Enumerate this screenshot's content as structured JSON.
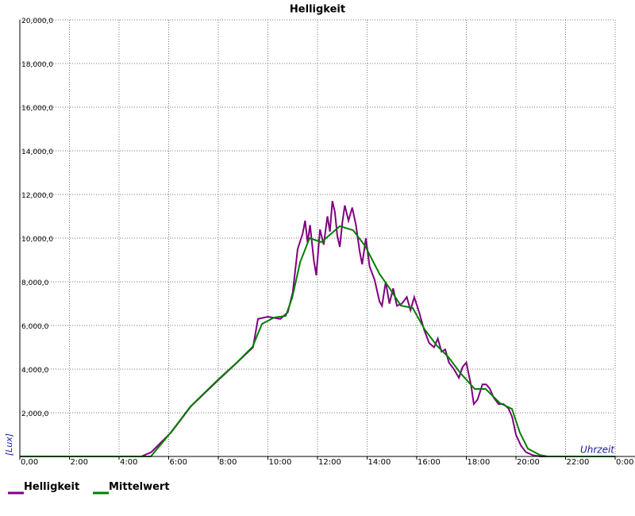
{
  "chart_data": {
    "type": "line",
    "title": "Helligkeit",
    "x_label": "Uhrzeit",
    "y_label": "[Lux]",
    "xlim": [
      0,
      24
    ],
    "ylim": [
      0,
      20000
    ],
    "xticks": [
      {
        "value": 0,
        "label": "0,00"
      },
      {
        "value": 2,
        "label": "2:00"
      },
      {
        "value": 4,
        "label": "4:00"
      },
      {
        "value": 6,
        "label": "6:00"
      },
      {
        "value": 8,
        "label": "8:00"
      },
      {
        "value": 10,
        "label": "10:00"
      },
      {
        "value": 12,
        "label": "12:00"
      },
      {
        "value": 14,
        "label": "14:00"
      },
      {
        "value": 16,
        "label": "16:00"
      },
      {
        "value": 18,
        "label": "18:00"
      },
      {
        "value": 20,
        "label": "20:00"
      },
      {
        "value": 22,
        "label": "22:00"
      },
      {
        "value": 24,
        "label": "0:00"
      }
    ],
    "yticks": [
      {
        "value": 2000,
        "label": "2,000,0"
      },
      {
        "value": 4000,
        "label": "4,000,0"
      },
      {
        "value": 6000,
        "label": "6,000,0"
      },
      {
        "value": 8000,
        "label": "8,000,0"
      },
      {
        "value": 10000,
        "label": "10,000,0"
      },
      {
        "value": 12000,
        "label": "12,000,0"
      },
      {
        "value": 14000,
        "label": "14,000,0"
      },
      {
        "value": 16000,
        "label": "16,000,0"
      },
      {
        "value": 18000,
        "label": "18,000,0"
      },
      {
        "value": 20000,
        "label": "20,000,0"
      }
    ],
    "grid": true,
    "series": [
      {
        "name": "Helligkeit",
        "color": "#800080",
        "x": [
          0,
          4.9,
          5.3,
          6.1,
          6.9,
          8,
          8.8,
          9.4,
          9.6,
          10,
          10.5,
          10.8,
          11,
          11.2,
          11.4,
          11.5,
          11.6,
          11.7,
          11.85,
          11.95,
          12.1,
          12.25,
          12.4,
          12.5,
          12.6,
          12.7,
          12.8,
          12.9,
          13,
          13.1,
          13.25,
          13.4,
          13.55,
          13.7,
          13.8,
          13.95,
          14.1,
          14.3,
          14.5,
          14.6,
          14.75,
          14.9,
          15.05,
          15.2,
          15.4,
          15.6,
          15.75,
          15.9,
          16.1,
          16.3,
          16.5,
          16.7,
          16.85,
          17,
          17.15,
          17.3,
          17.5,
          17.7,
          17.85,
          18,
          18.2,
          18.3,
          18.45,
          18.65,
          18.8,
          18.95,
          19.1,
          19.3,
          19.5,
          19.7,
          19.85,
          20,
          20.2,
          20.4,
          20.7,
          21,
          24
        ],
        "values": [
          0,
          0,
          200,
          1100,
          2300,
          3500,
          4350,
          5000,
          6300,
          6400,
          6300,
          6600,
          7500,
          9500,
          10200,
          10800,
          9800,
          10600,
          9000,
          8300,
          10400,
          9700,
          11000,
          10300,
          11700,
          11200,
          10100,
          9600,
          10700,
          11500,
          10800,
          11400,
          10600,
          9400,
          8800,
          10000,
          8700,
          8100,
          7100,
          6900,
          8000,
          7000,
          7700,
          6900,
          7000,
          7300,
          6700,
          7300,
          6600,
          5800,
          5200,
          5000,
          5400,
          4800,
          4900,
          4300,
          4000,
          3600,
          4100,
          4300,
          3200,
          2400,
          2600,
          3300,
          3300,
          3100,
          2700,
          2400,
          2400,
          2200,
          1800,
          1000,
          500,
          200,
          50,
          0,
          0
        ]
      },
      {
        "name": "Mittelwert",
        "color": "#008000",
        "x": [
          0,
          5.28,
          6.08,
          6.88,
          8,
          8.8,
          9.38,
          9.76,
          10.24,
          10.72,
          10.98,
          11.3,
          11.68,
          12.16,
          12.9,
          13.44,
          13.92,
          14.5,
          14.88,
          15.36,
          15.84,
          16.32,
          16.8,
          17.28,
          17.76,
          18.34,
          18.78,
          19.36,
          19.84,
          20.16,
          20.48,
          20.96,
          21.28,
          24
        ],
        "values": [
          0,
          0,
          1090,
          2290,
          3530,
          4360,
          5020,
          6070,
          6360,
          6440,
          7270,
          8900,
          10000,
          9820,
          10550,
          10360,
          9640,
          8360,
          7750,
          6910,
          6800,
          5820,
          5090,
          4550,
          3820,
          3090,
          3090,
          2440,
          2180,
          1090,
          360,
          70,
          0,
          0
        ]
      }
    ]
  }
}
